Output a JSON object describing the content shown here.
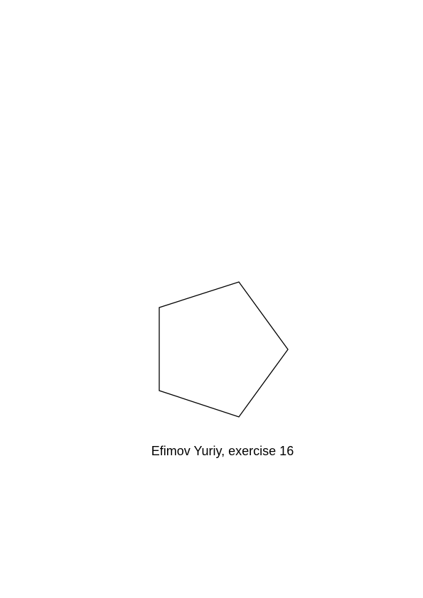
{
  "caption": "Efimov Yuriy, exercise 16",
  "colors": {
    "background": "#ffffff",
    "stroke": "#000000"
  },
  "figure": {
    "shape": "regular pentagon",
    "sides": 5,
    "fill": "none"
  }
}
